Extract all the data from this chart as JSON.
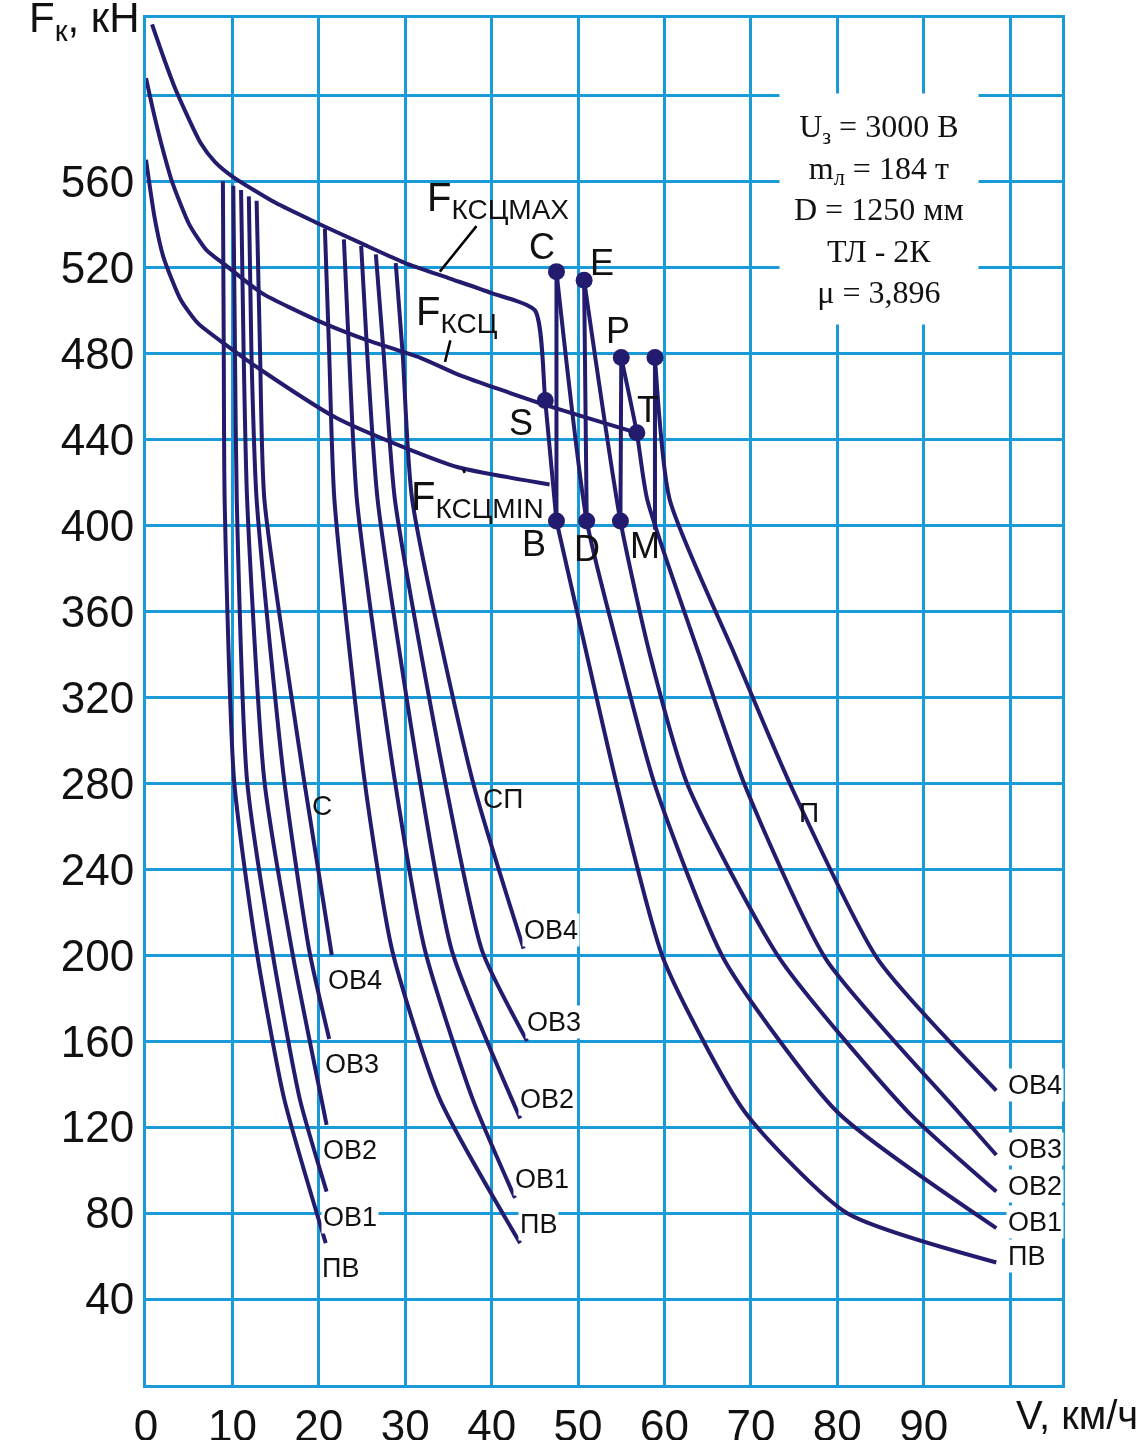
{
  "chart_data": {
    "type": "line",
    "xlabel": "V, км/ч",
    "ylabel": "F$_{к}$, кН",
    "xlim": [
      0,
      106
    ],
    "ylim": [
      0,
      636
    ],
    "xticks": [
      0,
      10,
      20,
      30,
      40,
      50,
      60,
      70,
      80,
      90,
      {
        "value": 100,
        "label": null
      }
    ],
    "yticks": [
      40,
      80,
      120,
      160,
      200,
      240,
      280,
      320,
      360,
      400,
      440,
      480,
      520,
      560,
      {
        "value": 600,
        "label": null
      }
    ],
    "grid": true,
    "marker": "none",
    "annotations": [
      "U$_{з}$ = 3000 В",
      "m$_{л}$ = 184 т",
      "D = 1250 мм",
      "ТЛ - 2К",
      "μ = 3,896",
      {
        "text": "F$_{КСЦMAX}$",
        "x": 34,
        "y": 518
      },
      {
        "text": "F$_{КСЦ}$",
        "x": 34.6,
        "y": 476
      },
      {
        "text": "F$_{КСЦMIN}$",
        "x": 36.7,
        "y": 426
      },
      {
        "text": "С",
        "x": 18.3,
        "y": 281
      },
      {
        "text": "СП",
        "x": 37.8,
        "y": 281
      },
      {
        "text": "П",
        "x": 74.6,
        "y": 279
      },
      {
        "text": "C",
        "x": 47.5,
        "y": 518
      },
      {
        "text": "E",
        "x": 50.7,
        "y": 514
      },
      {
        "text": "P",
        "x": 55,
        "y": 478
      },
      {
        "text": "T",
        "x": 56.8,
        "y": 443
      },
      {
        "text": "S",
        "x": 46.2,
        "y": 458
      },
      {
        "text": "B",
        "x": 47.5,
        "y": 402
      },
      {
        "text": "D",
        "x": 51,
        "y": 402
      },
      {
        "text": "M",
        "x": 54.9,
        "y": 402
      }
    ],
    "series": [
      {
        "color": "#231c6e",
        "x": [
          0.7,
          2,
          3.4,
          6.3,
          8,
          10.1,
          15,
          19.6,
          25,
          30,
          35,
          40,
          45,
          46.2,
          47.5
        ],
        "values": [
          633,
          618,
          603,
          578,
          569,
          562,
          550,
          541,
          531,
          522,
          515,
          508,
          500,
          458,
          402
        ]
      },
      {
        "color": "#231c6e",
        "x": [
          0,
          1,
          2,
          3,
          5,
          7,
          9.2,
          13.4,
          20,
          25,
          31.7,
          36.2,
          46.2,
          56.8
        ],
        "values": [
          608,
          590,
          574,
          560,
          540,
          528,
          521,
          508,
          495,
          487,
          478,
          470,
          456,
          443
        ]
      },
      {
        "color": "#231c6e",
        "x": [
          0,
          1,
          2,
          4,
          6,
          9.2,
          13.4,
          22,
          30,
          36.1,
          46.7
        ],
        "values": [
          570,
          543,
          525,
          505,
          494,
          484,
          472,
          450,
          436,
          427,
          419
        ]
      },
      {
        "name": "ПВ",
        "color": "#231c6e",
        "x": [
          8.9,
          9,
          9.1,
          10.2,
          12.8,
          16,
          20.8
        ],
        "values": [
          560,
          480,
          412,
          281,
          202,
          133,
          66
        ]
      },
      {
        "name": "ОВ1",
        "color": "#231c6e",
        "x": [
          10.1,
          10.3,
          10.5,
          11.7,
          14.6,
          17.8,
          20.9
        ],
        "values": [
          558,
          480,
          412,
          281,
          202,
          133,
          90
        ]
      },
      {
        "name": "ОВ2",
        "color": "#231c6e",
        "x": [
          11,
          11.3,
          11.7,
          13.7,
          16.9,
          20.3,
          20.9
        ],
        "values": [
          556,
          480,
          412,
          281,
          202,
          133,
          121
        ]
      },
      {
        "name": "ОВ3",
        "color": "#231c6e",
        "x": [
          11.9,
          12.2,
          12.8,
          16,
          18.9,
          21.2
        ],
        "values": [
          553,
          480,
          412,
          281,
          202,
          161
        ]
      },
      {
        "name": "ОВ4",
        "color": "#231c6e",
        "x": [
          12.8,
          13.2,
          13.7,
          18.3,
          21.5
        ],
        "values": [
          551,
          480,
          412,
          281,
          200
        ]
      },
      {
        "name": "ПВ",
        "color": "#231c6e",
        "x": [
          20.7,
          21.2,
          21.8,
          25.3,
          28.5,
          34,
          43.3
        ],
        "values": [
          538,
          480,
          412,
          281,
          202,
          133,
          66
        ]
      },
      {
        "name": "ОВ1",
        "color": "#231c6e",
        "x": [
          22.9,
          23.5,
          24.4,
          28.8,
          32.3,
          37.8,
          42.7
        ],
        "values": [
          533,
          480,
          412,
          281,
          202,
          133,
          87
        ]
      },
      {
        "name": "ОВ2",
        "color": "#231c6e",
        "x": [
          24.9,
          25.6,
          26.8,
          31.7,
          35.4,
          43.3
        ],
        "values": [
          530,
          480,
          412,
          281,
          202,
          124
        ]
      },
      {
        "name": "ОВ3",
        "color": "#231c6e",
        "x": [
          26.6,
          27.5,
          28.8,
          34.6,
          38.9,
          44.1
        ],
        "values": [
          526,
          480,
          412,
          281,
          202,
          160
        ]
      },
      {
        "name": "ОВ4",
        "color": "#231c6e",
        "x": [
          28.9,
          29.7,
          30.8,
          37.8,
          43.7
        ],
        "values": [
          522,
          480,
          412,
          281,
          203
        ]
      },
      {
        "name": "ПВ",
        "color": "#231c6e",
        "x": [
          47.5,
          51,
          54.5,
          59.9,
          69.3,
          81.1,
          98.4
        ],
        "values": [
          402,
          340,
          279,
          198,
          127,
          80,
          57
        ]
      },
      {
        "name": "ОВ1",
        "color": "#231c6e",
        "x": [
          47.5,
          51,
          54.8,
          58.9,
          66.9,
          80,
          98.4
        ],
        "values": [
          518,
          402,
          340,
          279,
          198,
          127,
          73
        ]
      },
      {
        "name": "ОВ2",
        "color": "#231c6e",
        "x": [
          50.7,
          54.9,
          58.3,
          62.7,
          73.4,
          88.2,
          98.4
        ],
        "values": [
          514,
          402,
          340,
          279,
          198,
          127,
          90
        ]
      },
      {
        "name": "ОВ3",
        "color": "#231c6e",
        "x": [
          55,
          56.8,
          58,
          64,
          69.3,
          78.7,
          94,
          98.4
        ],
        "values": [
          478,
          443,
          412,
          340,
          279,
          198,
          127,
          107
        ]
      },
      {
        "name": "ОВ4",
        "color": "#231c6e",
        "x": [
          58.9,
          60.6,
          68.1,
          74.6,
          84.7,
          98.4
        ],
        "values": [
          478,
          412,
          340,
          279,
          198,
          137
        ]
      },
      {
        "color": "#231c6e",
        "x": [
          47.5,
          47.5
        ],
        "values": [
          518,
          402
        ]
      },
      {
        "color": "#231c6e",
        "x": [
          50.7,
          51
        ],
        "values": [
          514,
          402
        ]
      },
      {
        "color": "#231c6e",
        "x": [
          55,
          54.9
        ],
        "values": [
          478,
          402
        ]
      },
      {
        "color": "#231c6e",
        "x": [
          58.9,
          58.9
        ],
        "values": [
          478,
          398
        ]
      },
      {
        "type": "scatter",
        "marker": "circle",
        "color": "#231c6e",
        "x": [
          47.5,
          50.7,
          55,
          58.9,
          46.2,
          56.8,
          47.5,
          51,
          54.9
        ],
        "values": [
          518,
          514,
          478,
          478,
          458,
          443,
          402,
          402,
          402
        ]
      }
    ]
  }
}
